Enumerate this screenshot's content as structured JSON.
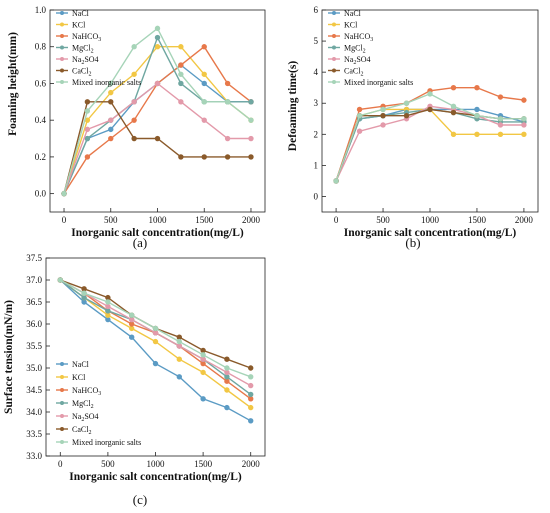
{
  "panels": [
    {
      "label": "(a)",
      "chart_data": {
        "type": "line",
        "xlabel": "Inorganic salt concentration(mg/L)",
        "ylabel": "Foaming height(mm)",
        "x": [
          0,
          250,
          500,
          750,
          1000,
          1250,
          1500,
          1750,
          2000
        ],
        "xticks": [
          "0",
          "500",
          "1000",
          "1500",
          "2000"
        ],
        "xlim": [
          -150,
          2150
        ],
        "yticks": [
          "0.0",
          "0.2",
          "0.4",
          "0.6",
          "0.8",
          "1.0"
        ],
        "ylim": [
          -0.1,
          1.0
        ],
        "grid": false,
        "legend": "top-left",
        "series": [
          {
            "name": "NaCl",
            "sub": "",
            "tail": "",
            "color": "#5b9bc4",
            "values": [
              0.0,
              0.3,
              0.35,
              0.5,
              0.6,
              0.7,
              0.6,
              0.5,
              0.5
            ]
          },
          {
            "name": "KCl",
            "sub": "",
            "tail": "",
            "color": "#f2c744",
            "values": [
              0.0,
              0.4,
              0.55,
              0.65,
              0.8,
              0.8,
              0.65,
              0.5,
              0.4
            ]
          },
          {
            "name": "NaHCO",
            "sub": "3",
            "tail": "",
            "color": "#e7784a",
            "values": [
              0.0,
              0.2,
              0.3,
              0.4,
              0.6,
              0.7,
              0.8,
              0.6,
              0.5
            ]
          },
          {
            "name": "MgCl",
            "sub": "2",
            "tail": "",
            "color": "#6fa7a1",
            "values": [
              0.0,
              0.3,
              0.4,
              0.5,
              0.85,
              0.6,
              0.5,
              0.5,
              0.5
            ]
          },
          {
            "name": "Na",
            "sub": "2",
            "tail": "SO4",
            "color": "#e39aaa",
            "values": [
              0.0,
              0.35,
              0.4,
              0.5,
              0.6,
              0.5,
              0.4,
              0.3,
              0.3
            ]
          },
          {
            "name": "CaCl",
            "sub": "2",
            "tail": "",
            "color": "#8a5a2b",
            "values": [
              0.0,
              0.5,
              0.5,
              0.3,
              0.3,
              0.2,
              0.2,
              0.2,
              0.2
            ]
          },
          {
            "name": "Mixed inorganic salts",
            "sub": "",
            "tail": "",
            "color": "#a6d4b8",
            "values": [
              0.0,
              0.45,
              0.6,
              0.8,
              0.9,
              0.65,
              0.5,
              0.5,
              0.4
            ]
          }
        ]
      }
    },
    {
      "label": "(b)",
      "chart_data": {
        "type": "line",
        "xlabel": "Inorganic salt concentration(mg/L)",
        "ylabel": "Defoaming time(s)",
        "x": [
          0,
          250,
          500,
          750,
          1000,
          1250,
          1500,
          1750,
          2000
        ],
        "xticks": [
          "0",
          "500",
          "1000",
          "1500",
          "2000"
        ],
        "xlim": [
          -150,
          2150
        ],
        "yticks": [
          "0",
          "1",
          "2",
          "3",
          "4",
          "5",
          "6"
        ],
        "ylim": [
          -0.5,
          6.0
        ],
        "grid": false,
        "legend": "top-left",
        "series": [
          {
            "name": "NaCl",
            "sub": "",
            "tail": "",
            "color": "#5b9bc4",
            "values": [
              0.5,
              2.5,
              2.6,
              2.8,
              2.8,
              2.8,
              2.8,
              2.6,
              2.4
            ]
          },
          {
            "name": "KCl",
            "sub": "",
            "tail": "",
            "color": "#f2c744",
            "values": [
              0.5,
              2.6,
              2.8,
              2.8,
              2.8,
              2.0,
              2.0,
              2.0,
              2.0
            ]
          },
          {
            "name": "NaHCO",
            "sub": "3",
            "tail": "",
            "color": "#e7784a",
            "values": [
              0.5,
              2.8,
              2.9,
              3.0,
              3.4,
              3.5,
              3.5,
              3.2,
              3.1
            ]
          },
          {
            "name": "MgCl",
            "sub": "2",
            "tail": "",
            "color": "#6fa7a1",
            "values": [
              0.5,
              2.5,
              2.6,
              2.7,
              2.8,
              2.7,
              2.5,
              2.4,
              2.4
            ]
          },
          {
            "name": "Na",
            "sub": "2",
            "tail": "SO4",
            "color": "#e39aaa",
            "values": [
              0.5,
              2.1,
              2.3,
              2.5,
              2.9,
              2.8,
              2.6,
              2.3,
              2.3
            ]
          },
          {
            "name": "CaCl",
            "sub": "2",
            "tail": "",
            "color": "#8a5a2b",
            "values": [
              0.5,
              2.6,
              2.6,
              2.6,
              2.8,
              2.7,
              2.6,
              2.5,
              2.5
            ]
          },
          {
            "name": "Mixed inorganic salts",
            "sub": "",
            "tail": "",
            "color": "#a6d4b8",
            "values": [
              0.5,
              2.6,
              2.8,
              3.0,
              3.3,
              2.9,
              2.6,
              2.5,
              2.5
            ]
          }
        ]
      }
    },
    {
      "label": "(c)",
      "chart_data": {
        "type": "line",
        "xlabel": "Inorganic salt concentration(mg/L)",
        "ylabel": "Surface tension(mN/m)",
        "x": [
          0,
          250,
          500,
          750,
          1000,
          1250,
          1500,
          1750,
          2000
        ],
        "xticks": [
          "0",
          "500",
          "1000",
          "1500",
          "2000"
        ],
        "xlim": [
          -150,
          2150
        ],
        "yticks": [
          "33.0",
          "33.5",
          "34.0",
          "34.5",
          "35.0",
          "35.5",
          "36.0",
          "36.5",
          "37.0",
          "37.5"
        ],
        "ylim": [
          33.0,
          37.5
        ],
        "grid": false,
        "legend": "left",
        "series": [
          {
            "name": "NaCl",
            "sub": "",
            "tail": "",
            "color": "#5b9bc4",
            "values": [
              37.0,
              36.5,
              36.1,
              35.7,
              35.1,
              34.8,
              34.3,
              34.1,
              33.8
            ]
          },
          {
            "name": "KCl",
            "sub": "",
            "tail": "",
            "color": "#f2c744",
            "values": [
              37.0,
              36.6,
              36.2,
              35.9,
              35.6,
              35.2,
              34.9,
              34.5,
              34.1
            ]
          },
          {
            "name": "NaHCO",
            "sub": "3",
            "tail": "",
            "color": "#e7784a",
            "values": [
              37.0,
              36.7,
              36.3,
              36.0,
              35.8,
              35.5,
              35.1,
              34.7,
              34.3
            ]
          },
          {
            "name": "MgCl",
            "sub": "2",
            "tail": "",
            "color": "#6fa7a1",
            "values": [
              37.0,
              36.6,
              36.3,
              36.1,
              35.8,
              35.5,
              35.2,
              34.8,
              34.4
            ]
          },
          {
            "name": "Na",
            "sub": "2",
            "tail": "SO4",
            "color": "#e39aaa",
            "values": [
              37.0,
              36.7,
              36.4,
              36.1,
              35.8,
              35.5,
              35.2,
              34.9,
              34.6
            ]
          },
          {
            "name": "CaCl",
            "sub": "2",
            "tail": "",
            "color": "#8a5a2b",
            "values": [
              37.0,
              36.8,
              36.6,
              36.2,
              35.9,
              35.7,
              35.4,
              35.2,
              35.0
            ]
          },
          {
            "name": "Mixed inorganic salts",
            "sub": "",
            "tail": "",
            "color": "#a6d4b8",
            "values": [
              37.0,
              36.7,
              36.5,
              36.2,
              35.9,
              35.6,
              35.3,
              35.0,
              34.8
            ]
          }
        ]
      }
    }
  ]
}
